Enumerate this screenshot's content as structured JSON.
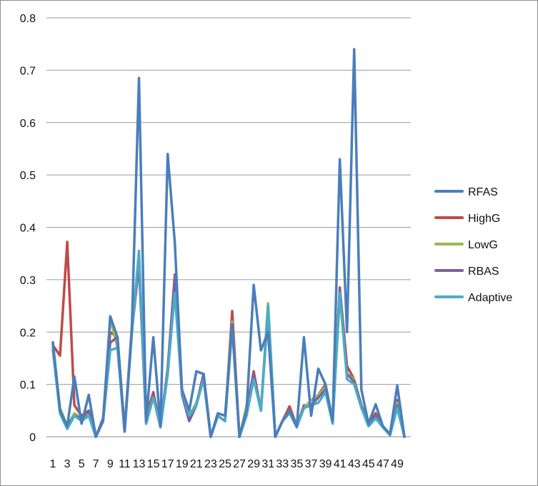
{
  "chart_data": {
    "type": "line",
    "x": [
      1,
      2,
      3,
      4,
      5,
      6,
      7,
      8,
      9,
      10,
      11,
      12,
      13,
      14,
      15,
      16,
      17,
      18,
      19,
      20,
      21,
      22,
      23,
      24,
      25,
      26,
      27,
      28,
      29,
      30,
      31,
      32,
      33,
      34,
      35,
      36,
      37,
      38,
      39,
      40,
      41,
      42,
      43,
      44,
      45,
      46,
      47,
      48,
      49,
      50
    ],
    "x_tick_labels": [
      "1",
      "3",
      "5",
      "7",
      "9",
      "11",
      "13",
      "15",
      "17",
      "19",
      "21",
      "23",
      "25",
      "27",
      "29",
      "31",
      "33",
      "35",
      "37",
      "39",
      "41",
      "43",
      "45",
      "47",
      "49"
    ],
    "ylim": [
      0,
      0.8
    ],
    "y_ticks": [
      0,
      0.1,
      0.2,
      0.3,
      0.4,
      0.5,
      0.6,
      0.7,
      0.8
    ],
    "y_tick_labels": [
      "0",
      "0.1",
      "0.2",
      "0.3",
      "0.4",
      "0.5",
      "0.6",
      "0.7",
      "0.8"
    ],
    "grid": "horizontal",
    "legend_position": "right",
    "series": [
      {
        "name": "RFAS",
        "color": "#4a7ebb",
        "values": [
          0.18,
          0.05,
          0.02,
          0.115,
          0.025,
          0.08,
          0.0,
          0.03,
          0.23,
          0.19,
          0.01,
          0.2,
          0.685,
          0.03,
          0.19,
          0.02,
          0.54,
          0.37,
          0.09,
          0.05,
          0.125,
          0.12,
          0.0,
          0.045,
          0.04,
          0.215,
          0.0,
          0.05,
          0.29,
          0.165,
          0.2,
          0.0,
          0.03,
          0.05,
          0.02,
          0.19,
          0.04,
          0.13,
          0.1,
          0.03,
          0.53,
          0.2,
          0.74,
          0.09,
          0.025,
          0.062,
          0.02,
          0.005,
          0.098,
          0.0
        ]
      },
      {
        "name": "HighG",
        "color": "#be4b48",
        "values": [
          0.175,
          0.155,
          0.372,
          0.06,
          0.04,
          0.05,
          0.0,
          0.035,
          0.2,
          0.19,
          0.015,
          0.2,
          0.33,
          0.04,
          0.085,
          0.02,
          0.12,
          0.3,
          0.09,
          0.035,
          0.06,
          0.12,
          0.0,
          0.04,
          0.03,
          0.24,
          0.0,
          0.05,
          0.125,
          0.05,
          0.25,
          0.0,
          0.03,
          0.058,
          0.02,
          0.06,
          0.06,
          0.08,
          0.1,
          0.03,
          0.285,
          0.135,
          0.11,
          0.06,
          0.025,
          0.045,
          0.02,
          0.005,
          0.07,
          0.0
        ]
      },
      {
        "name": "LowG",
        "color": "#98b954",
        "values": [
          0.17,
          0.055,
          0.02,
          0.045,
          0.035,
          0.045,
          0.0,
          0.035,
          0.225,
          0.17,
          0.015,
          0.21,
          0.34,
          0.03,
          0.08,
          0.02,
          0.13,
          0.29,
          0.085,
          0.04,
          0.065,
          0.11,
          0.0,
          0.04,
          0.03,
          0.22,
          0.0,
          0.06,
          0.115,
          0.05,
          0.255,
          0.0,
          0.03,
          0.05,
          0.02,
          0.055,
          0.07,
          0.08,
          0.095,
          0.03,
          0.27,
          0.12,
          0.11,
          0.06,
          0.025,
          0.04,
          0.02,
          0.005,
          0.065,
          0.0
        ]
      },
      {
        "name": "RBAS",
        "color": "#7d5fa0",
        "values": [
          0.18,
          0.05,
          0.02,
          0.04,
          0.035,
          0.05,
          0.0,
          0.035,
          0.18,
          0.19,
          0.01,
          0.2,
          0.33,
          0.025,
          0.08,
          0.02,
          0.13,
          0.31,
          0.08,
          0.03,
          0.06,
          0.12,
          0.0,
          0.04,
          0.03,
          0.215,
          0.0,
          0.05,
          0.12,
          0.05,
          0.24,
          0.0,
          0.03,
          0.05,
          0.02,
          0.055,
          0.06,
          0.075,
          0.09,
          0.03,
          0.28,
          0.12,
          0.105,
          0.06,
          0.025,
          0.04,
          0.02,
          0.005,
          0.06,
          0.0
        ]
      },
      {
        "name": "Adaptive",
        "color": "#4bacc6",
        "values": [
          0.165,
          0.045,
          0.015,
          0.04,
          0.03,
          0.04,
          0.0,
          0.03,
          0.165,
          0.17,
          0.01,
          0.195,
          0.355,
          0.025,
          0.075,
          0.018,
          0.12,
          0.275,
          0.085,
          0.04,
          0.06,
          0.11,
          0.0,
          0.04,
          0.03,
          0.21,
          0.0,
          0.04,
          0.11,
          0.05,
          0.25,
          0.0,
          0.03,
          0.045,
          0.018,
          0.055,
          0.06,
          0.065,
          0.085,
          0.025,
          0.275,
          0.11,
          0.1,
          0.055,
          0.02,
          0.035,
          0.018,
          0.003,
          0.055,
          0.0
        ]
      }
    ]
  }
}
